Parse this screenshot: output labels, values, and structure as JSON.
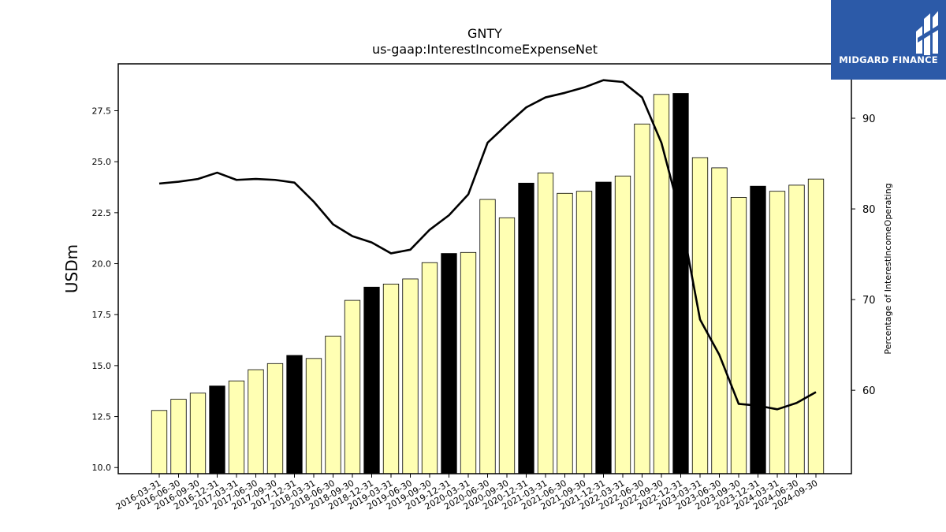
{
  "chart_data": {
    "type": "bar",
    "title": "GNTY",
    "subtitle": "us-gaap:InterestIncomeExpenseNet",
    "ylabel": "USDm",
    "y2label": "Percentage of InterestIncomeOperating",
    "ylim": [
      9.7,
      29.8
    ],
    "y2lim": [
      50.8,
      96.0
    ],
    "yticks": [
      "10.0",
      "12.5",
      "15.0",
      "17.5",
      "20.0",
      "22.5",
      "25.0",
      "27.5"
    ],
    "y2ticks": [
      "60",
      "70",
      "80",
      "90"
    ],
    "categories": [
      "2016-03-31",
      "2016-06-30",
      "2016-09-30",
      "2016-12-31",
      "2017-03-31",
      "2017-06-30",
      "2017-09-30",
      "2017-12-31",
      "2018-03-31",
      "2018-06-30",
      "2018-09-30",
      "2018-12-31",
      "2019-03-31",
      "2019-06-30",
      "2019-09-30",
      "2019-12-31",
      "2020-03-31",
      "2020-06-30",
      "2020-09-30",
      "2020-12-31",
      "2021-03-31",
      "2021-06-30",
      "2021-09-30",
      "2021-12-31",
      "2022-03-31",
      "2022-06-30",
      "2022-09-30",
      "2022-12-31",
      "2023-03-31",
      "2023-06-30",
      "2023-09-30",
      "2023-12-31",
      "2024-03-31",
      "2024-06-30",
      "2024-09-30"
    ],
    "series": [
      {
        "type": "bar",
        "values": [
          12.8,
          13.35,
          13.65,
          14.0,
          14.25,
          14.8,
          15.1,
          15.5,
          15.35,
          16.45,
          18.2,
          18.85,
          19.0,
          19.25,
          20.05,
          20.5,
          20.55,
          23.15,
          22.25,
          23.95,
          24.45,
          23.45,
          23.55,
          24.0,
          24.3,
          26.85,
          28.3,
          28.35,
          25.2,
          24.7,
          23.25,
          23.8,
          23.55,
          23.85,
          24.15
        ],
        "highlight_quarter_end": "12-31",
        "fill_color": "#ffffb3",
        "highlight_color": "#000000"
      },
      {
        "type": "line",
        "axis": "secondary",
        "values": [
          82.8,
          83.0,
          83.3,
          84.0,
          83.2,
          83.3,
          83.2,
          82.9,
          80.8,
          78.3,
          77.0,
          76.3,
          75.1,
          75.5,
          77.7,
          79.3,
          81.6,
          87.3,
          89.3,
          91.2,
          92.3,
          92.8,
          93.4,
          94.2,
          94.0,
          92.3,
          87.3,
          79.2,
          67.8,
          63.9,
          58.5,
          58.3,
          57.9,
          58.6,
          59.8
        ],
        "color": "#000000"
      }
    ]
  },
  "logo": {
    "text": "MIDGARD FINANCE",
    "background": "#2c5aa8"
  }
}
